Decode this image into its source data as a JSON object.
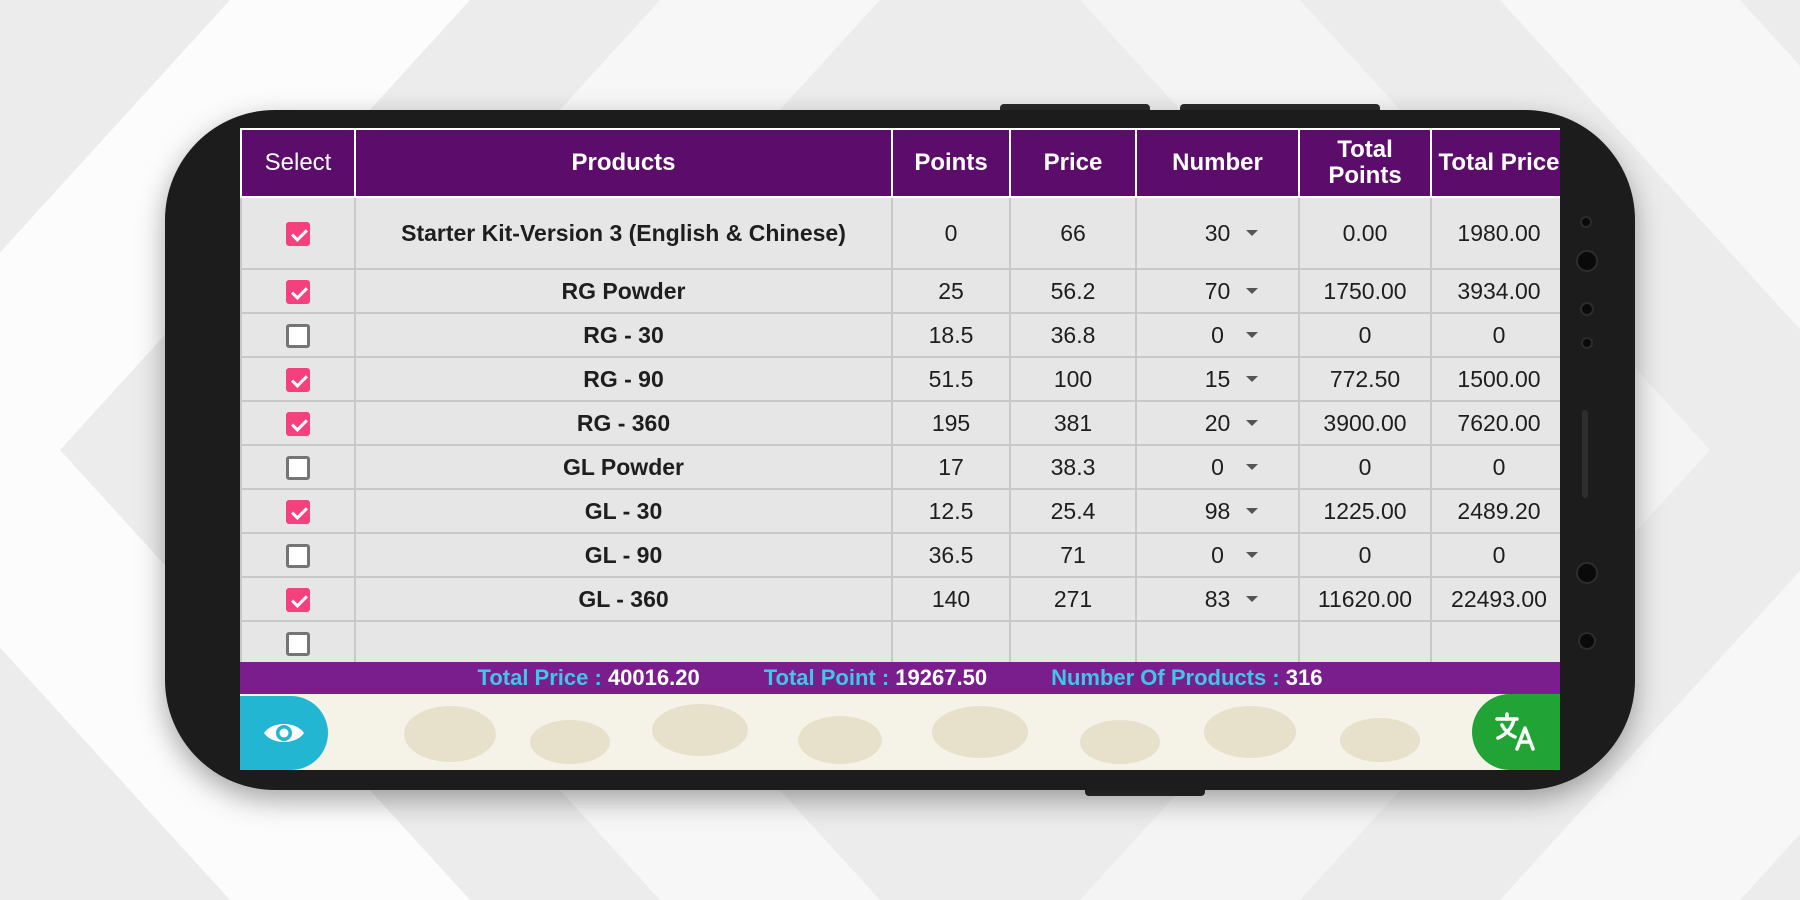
{
  "colors": {
    "header_bg": "#5c0c6a",
    "summary_bg": "#7a1e8e",
    "summary_label": "#3fc6e8",
    "checkbox_checked": "#f4417d",
    "eye_button": "#22b6d3",
    "translate_button": "#22a336"
  },
  "table": {
    "headers": {
      "select": "Select",
      "products": "Products",
      "points": "Points",
      "price": "Price",
      "number": "Number",
      "total_points": "Total Points",
      "total_price": "Total Price"
    },
    "rows": [
      {
        "checked": true,
        "product": "Starter Kit-Version 3 (English & Chinese)",
        "points": "0",
        "price": "66",
        "number": "30",
        "total_points": "0.00",
        "total_price": "1980.00"
      },
      {
        "checked": true,
        "product": "RG Powder",
        "points": "25",
        "price": "56.2",
        "number": "70",
        "total_points": "1750.00",
        "total_price": "3934.00"
      },
      {
        "checked": false,
        "product": "RG - 30",
        "points": "18.5",
        "price": "36.8",
        "number": "0",
        "total_points": "0",
        "total_price": "0"
      },
      {
        "checked": true,
        "product": "RG - 90",
        "points": "51.5",
        "price": "100",
        "number": "15",
        "total_points": "772.50",
        "total_price": "1500.00"
      },
      {
        "checked": true,
        "product": "RG - 360",
        "points": "195",
        "price": "381",
        "number": "20",
        "total_points": "3900.00",
        "total_price": "7620.00"
      },
      {
        "checked": false,
        "product": "GL Powder",
        "points": "17",
        "price": "38.3",
        "number": "0",
        "total_points": "0",
        "total_price": "0"
      },
      {
        "checked": true,
        "product": "GL - 30",
        "points": "12.5",
        "price": "25.4",
        "number": "98",
        "total_points": "1225.00",
        "total_price": "2489.20"
      },
      {
        "checked": false,
        "product": "GL - 90",
        "points": "36.5",
        "price": "71",
        "number": "0",
        "total_points": "0",
        "total_price": "0"
      },
      {
        "checked": true,
        "product": "GL - 360",
        "points": "140",
        "price": "271",
        "number": "83",
        "total_points": "11620.00",
        "total_price": "22493.00"
      }
    ]
  },
  "summary": {
    "total_price_label": "Total Price :",
    "total_price_value": "40016.20",
    "total_point_label": "Total Point :",
    "total_point_value": "19267.50",
    "products_label": "Number Of Products :",
    "products_value": "316"
  },
  "icons": {
    "visibility": "eye-icon",
    "translate": "translate-icon"
  }
}
